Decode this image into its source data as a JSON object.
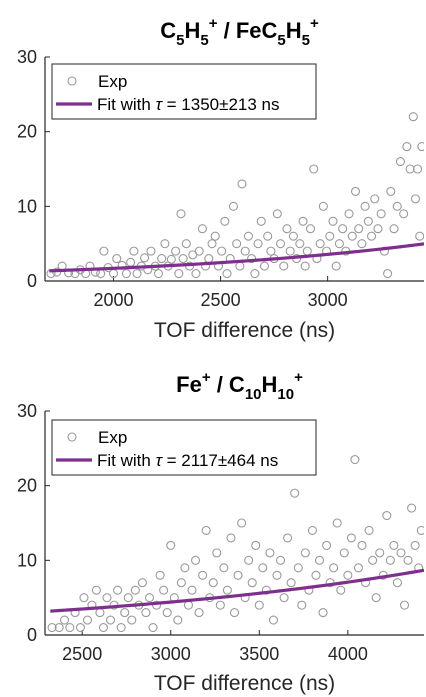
{
  "colors": {
    "fit": "#7E2F8E",
    "points": "#9a9a9a",
    "axis": "#262626"
  },
  "chart_data": [
    {
      "type": "scatter",
      "title": {
        "parts": [
          {
            "t": "C",
            "s": "n"
          },
          {
            "t": "5",
            "s": "sub"
          },
          {
            "t": "H",
            "s": "n"
          },
          {
            "t": "5",
            "s": "sub"
          },
          {
            "t": "+",
            "s": "sup"
          },
          {
            "t": " / FeC",
            "s": "n"
          },
          {
            "t": "5",
            "s": "sub"
          },
          {
            "t": "H",
            "s": "n"
          },
          {
            "t": "5",
            "s": "sub"
          },
          {
            "t": "+",
            "s": "sup"
          }
        ]
      },
      "xlabel": "TOF difference (ns)",
      "ylabel": "",
      "xlim": [
        1680,
        3450
      ],
      "ylim": [
        0,
        30
      ],
      "xticks": [
        2000,
        2500,
        3000
      ],
      "yticks": [
        0,
        10,
        20,
        30
      ],
      "legend": {
        "position": "top-left",
        "exp_label": "Exp",
        "fit_prefix": "Fit with ",
        "fit_tau_symbol": "τ",
        "fit_value": " = 1350±213 ns"
      },
      "fit": {
        "tau": 1350,
        "A": 1.36,
        "x0": 1700
      },
      "series": [
        {
          "name": "Exp",
          "points": [
            [
              1708,
              1
            ],
            [
              1735,
              1.2
            ],
            [
              1760,
              2
            ],
            [
              1790,
              1.1
            ],
            [
              1820,
              1
            ],
            [
              1845,
              1.5
            ],
            [
              1870,
              1
            ],
            [
              1890,
              2
            ],
            [
              1915,
              1.2
            ],
            [
              1940,
              1
            ],
            [
              1955,
              4
            ],
            [
              1975,
              1.8
            ],
            [
              2000,
              1
            ],
            [
              2015,
              3
            ],
            [
              2040,
              2.1
            ],
            [
              2060,
              1
            ],
            [
              2080,
              2.5
            ],
            [
              2095,
              4
            ],
            [
              2110,
              1
            ],
            [
              2130,
              2
            ],
            [
              2145,
              3.1
            ],
            [
              2160,
              1.5
            ],
            [
              2175,
              4
            ],
            [
              2195,
              2
            ],
            [
              2210,
              1
            ],
            [
              2225,
              3
            ],
            [
              2240,
              5
            ],
            [
              2255,
              2
            ],
            [
              2270,
              2.9
            ],
            [
              2290,
              4
            ],
            [
              2305,
              1
            ],
            [
              2315,
              9
            ],
            [
              2325,
              3
            ],
            [
              2340,
              5
            ],
            [
              2355,
              2
            ],
            [
              2370,
              3.5
            ],
            [
              2385,
              1
            ],
            [
              2400,
              4
            ],
            [
              2415,
              7
            ],
            [
              2430,
              2
            ],
            [
              2445,
              3
            ],
            [
              2460,
              5
            ],
            [
              2475,
              6
            ],
            [
              2490,
              2
            ],
            [
              2505,
              4
            ],
            [
              2520,
              8
            ],
            [
              2530,
              1
            ],
            [
              2545,
              3
            ],
            [
              2560,
              10
            ],
            [
              2575,
              5
            ],
            [
              2590,
              2
            ],
            [
              2600,
              13
            ],
            [
              2615,
              4
            ],
            [
              2630,
              6
            ],
            [
              2645,
              3
            ],
            [
              2660,
              1
            ],
            [
              2675,
              5
            ],
            [
              2690,
              8
            ],
            [
              2705,
              2
            ],
            [
              2720,
              6
            ],
            [
              2735,
              4
            ],
            [
              2750,
              3
            ],
            [
              2765,
              9
            ],
            [
              2780,
              5
            ],
            [
              2795,
              2
            ],
            [
              2810,
              7
            ],
            [
              2825,
              4
            ],
            [
              2840,
              6
            ],
            [
              2855,
              3
            ],
            [
              2870,
              5
            ],
            [
              2885,
              8
            ],
            [
              2895,
              2
            ],
            [
              2905,
              4
            ],
            [
              2920,
              7
            ],
            [
              2935,
              15
            ],
            [
              2950,
              3
            ],
            [
              2965,
              5
            ],
            [
              2980,
              10
            ],
            [
              2995,
              4
            ],
            [
              3010,
              6
            ],
            [
              3025,
              8
            ],
            [
              3040,
              2
            ],
            [
              3055,
              5
            ],
            [
              3070,
              7
            ],
            [
              3085,
              4
            ],
            [
              3100,
              9
            ],
            [
              3115,
              6
            ],
            [
              3130,
              12
            ],
            [
              3145,
              7
            ],
            [
              3160,
              5
            ],
            [
              3175,
              10
            ],
            [
              3190,
              8
            ],
            [
              3205,
              6
            ],
            [
              3220,
              11
            ],
            [
              3235,
              7
            ],
            [
              3250,
              9
            ],
            [
              3265,
              4
            ],
            [
              3280,
              1
            ],
            [
              3295,
              12
            ],
            [
              3310,
              7
            ],
            [
              3325,
              10
            ],
            [
              3340,
              16
            ],
            [
              3355,
              9
            ],
            [
              3370,
              18
            ],
            [
              3385,
              15
            ],
            [
              3400,
              22
            ],
            [
              3410,
              11
            ],
            [
              3420,
              15
            ],
            [
              3430,
              6
            ],
            [
              3440,
              18
            ]
          ]
        }
      ]
    },
    {
      "type": "scatter",
      "title": {
        "parts": [
          {
            "t": "Fe",
            "s": "n"
          },
          {
            "t": "+",
            "s": "sup"
          },
          {
            "t": " / C",
            "s": "n"
          },
          {
            "t": "10",
            "s": "sub"
          },
          {
            "t": "H",
            "s": "n"
          },
          {
            "t": "10",
            "s": "sub"
          },
          {
            "t": "+",
            "s": "sup"
          }
        ]
      },
      "xlabel": "TOF difference (ns)",
      "ylabel": "",
      "xlim": [
        2290,
        4430
      ],
      "ylim": [
        0,
        30
      ],
      "xticks": [
        2500,
        3000,
        3500,
        4000
      ],
      "yticks": [
        0,
        10,
        20,
        30
      ],
      "legend": {
        "position": "top-left",
        "exp_label": "Exp",
        "fit_prefix": "Fit with ",
        "fit_tau_symbol": "τ",
        "fit_value": " = 2117±464 ns"
      },
      "fit": {
        "tau": 2117,
        "A": 3.2,
        "x0": 2320
      },
      "series": [
        {
          "name": "Exp",
          "points": [
            [
              2330,
              1
            ],
            [
              2370,
              1
            ],
            [
              2400,
              2
            ],
            [
              2430,
              1
            ],
            [
              2460,
              3
            ],
            [
              2490,
              1
            ],
            [
              2510,
              5
            ],
            [
              2530,
              2
            ],
            [
              2555,
              4
            ],
            [
              2580,
              6
            ],
            [
              2600,
              3
            ],
            [
              2620,
              1
            ],
            [
              2640,
              5
            ],
            [
              2660,
              2
            ],
            [
              2680,
              4
            ],
            [
              2700,
              6
            ],
            [
              2720,
              1
            ],
            [
              2740,
              3
            ],
            [
              2760,
              5
            ],
            [
              2780,
              2
            ],
            [
              2800,
              6
            ],
            [
              2820,
              4
            ],
            [
              2840,
              7
            ],
            [
              2860,
              3
            ],
            [
              2880,
              5
            ],
            [
              2900,
              1
            ],
            [
              2920,
              4
            ],
            [
              2940,
              8
            ],
            [
              2960,
              6
            ],
            [
              2980,
              3
            ],
            [
              3000,
              12
            ],
            [
              3020,
              5
            ],
            [
              3040,
              2
            ],
            [
              3060,
              7
            ],
            [
              3080,
              9
            ],
            [
              3100,
              4
            ],
            [
              3120,
              6
            ],
            [
              3140,
              10
            ],
            [
              3160,
              3
            ],
            [
              3180,
              8
            ],
            [
              3200,
              14
            ],
            [
              3220,
              5
            ],
            [
              3240,
              7
            ],
            [
              3260,
              11
            ],
            [
              3280,
              4
            ],
            [
              3300,
              9
            ],
            [
              3320,
              6
            ],
            [
              3340,
              13
            ],
            [
              3360,
              3
            ],
            [
              3380,
              8
            ],
            [
              3400,
              15
            ],
            [
              3420,
              5
            ],
            [
              3440,
              10
            ],
            [
              3460,
              7
            ],
            [
              3480,
              12
            ],
            [
              3500,
              4
            ],
            [
              3520,
              9
            ],
            [
              3540,
              6
            ],
            [
              3560,
              11
            ],
            [
              3580,
              2
            ],
            [
              3600,
              8
            ],
            [
              3620,
              10
            ],
            [
              3640,
              5
            ],
            [
              3660,
              13
            ],
            [
              3680,
              7
            ],
            [
              3700,
              19
            ],
            [
              3720,
              9
            ],
            [
              3740,
              4
            ],
            [
              3760,
              11
            ],
            [
              3780,
              6
            ],
            [
              3800,
              14
            ],
            [
              3820,
              8
            ],
            [
              3840,
              10
            ],
            [
              3860,
              3
            ],
            [
              3880,
              12
            ],
            [
              3900,
              7
            ],
            [
              3920,
              9
            ],
            [
              3940,
              15
            ],
            [
              3960,
              6
            ],
            [
              3980,
              11
            ],
            [
              4000,
              8
            ],
            [
              4020,
              13
            ],
            [
              4040,
              23.5
            ],
            [
              4060,
              9
            ],
            [
              4080,
              12
            ],
            [
              4100,
              7
            ],
            [
              4120,
              14
            ],
            [
              4140,
              10
            ],
            [
              4160,
              5
            ],
            [
              4180,
              11
            ],
            [
              4200,
              8
            ],
            [
              4220,
              16
            ],
            [
              4240,
              10
            ],
            [
              4260,
              12
            ],
            [
              4280,
              7
            ],
            [
              4300,
              11
            ],
            [
              4320,
              4
            ],
            [
              4340,
              10
            ],
            [
              4360,
              17
            ],
            [
              4380,
              12
            ],
            [
              4400,
              9
            ],
            [
              4415,
              14
            ]
          ]
        }
      ]
    }
  ]
}
